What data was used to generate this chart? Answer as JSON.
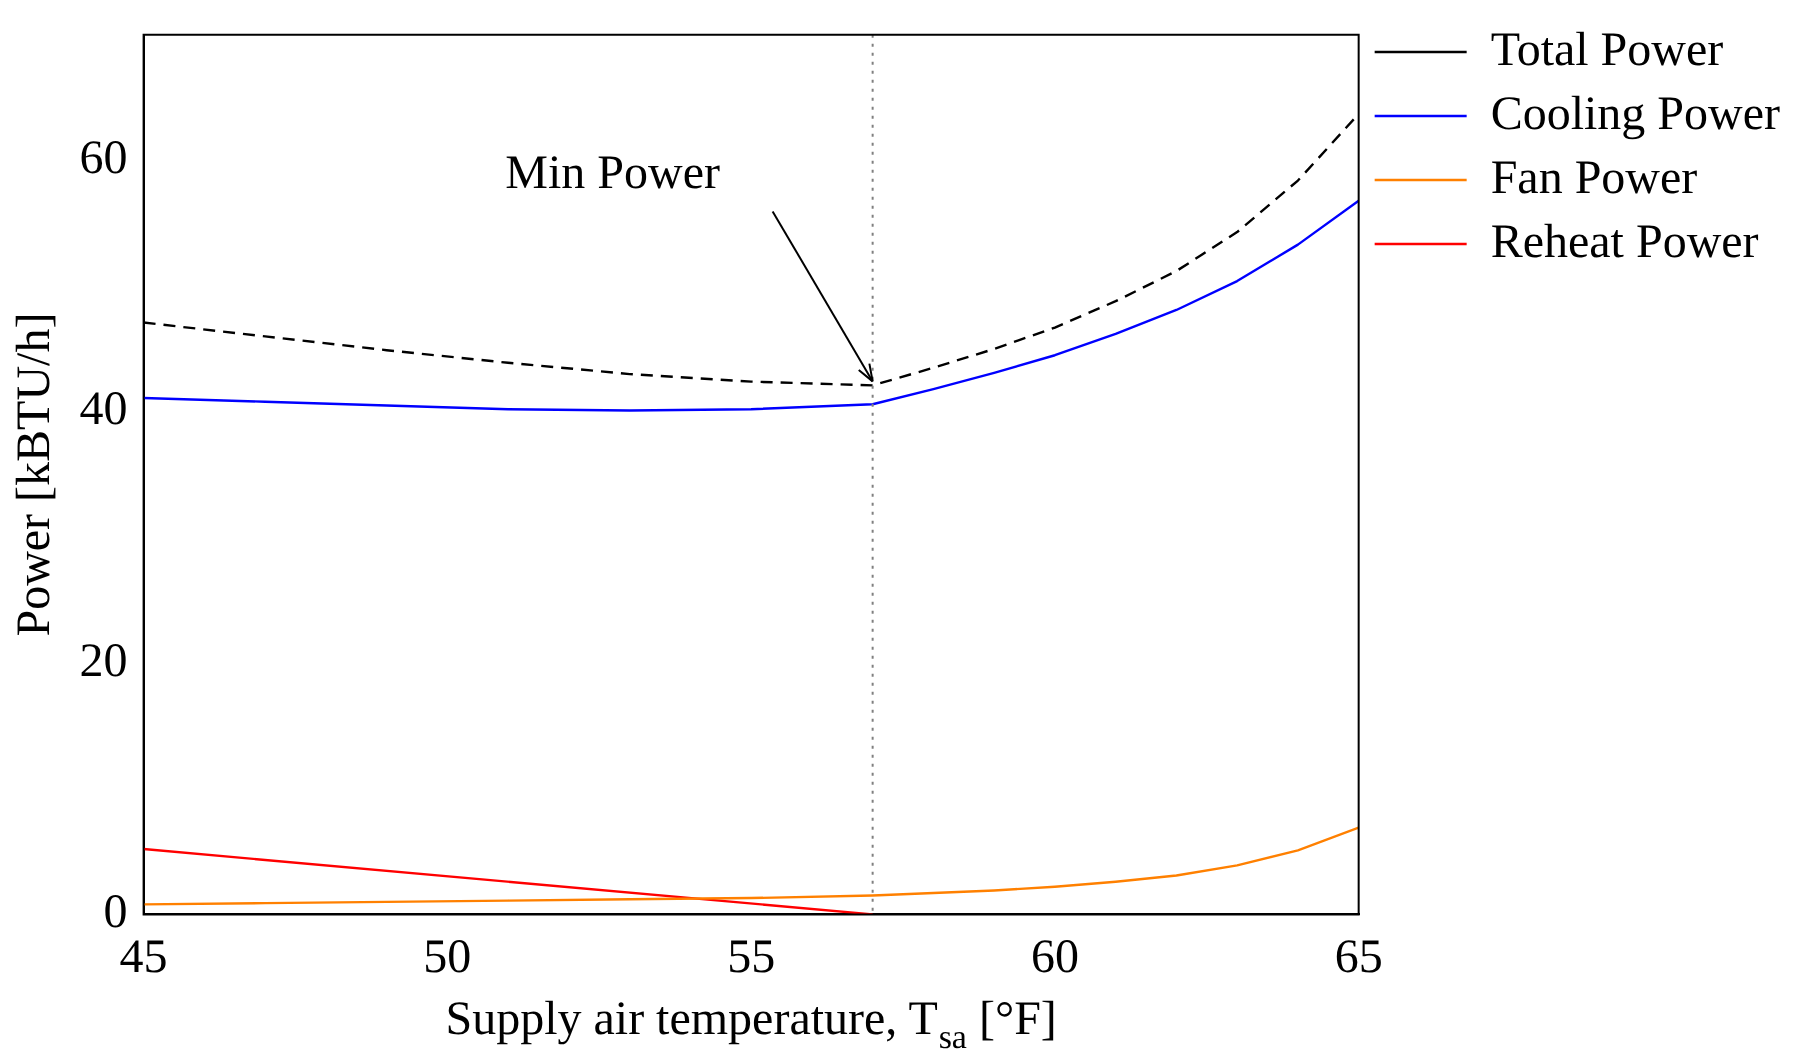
{
  "chart_data": {
    "type": "line",
    "xlabel": "Supply air temperature, T$_{sa}$ [°F]",
    "ylabel": "Power [kBTU/h]",
    "xlim": [
      45,
      65
    ],
    "xticks": [
      45,
      50,
      55,
      60,
      65
    ],
    "ylim": [
      0,
      70
    ],
    "yticks": [
      0,
      20,
      40,
      60
    ],
    "grid": false,
    "legend": "top right",
    "marker": "none",
    "series": [
      {
        "name": "Total Power",
        "color": "#000000",
        "line_style": "dashed",
        "x": [
          45,
          47,
          49,
          51,
          53,
          55,
          57,
          58,
          59,
          60,
          61,
          62,
          63,
          64,
          65
        ],
        "values": [
          47.1,
          46.0,
          44.9,
          43.9,
          43.0,
          42.4,
          42.1,
          43.5,
          45.0,
          46.7,
          48.8,
          51.2,
          54.3,
          58.4,
          63.7
        ]
      },
      {
        "name": "Cooling Power",
        "color": "#0000ff",
        "line_style": "solid",
        "x": [
          45,
          47,
          49,
          51,
          53,
          55,
          57,
          58,
          59,
          60,
          61,
          62,
          63,
          64,
          65
        ],
        "values": [
          41.1,
          40.8,
          40.5,
          40.2,
          40.1,
          40.2,
          40.6,
          41.8,
          43.1,
          44.5,
          46.2,
          48.1,
          50.4,
          53.3,
          56.8
        ]
      },
      {
        "name": "Fan Power",
        "color": "#ff8000",
        "line_style": "solid",
        "x": [
          45,
          47,
          49,
          51,
          53,
          55,
          57,
          59,
          60,
          61,
          62,
          63,
          64,
          65
        ],
        "values": [
          0.8,
          0.9,
          1.0,
          1.1,
          1.2,
          1.3,
          1.5,
          1.9,
          2.2,
          2.6,
          3.1,
          3.9,
          5.1,
          6.9
        ]
      },
      {
        "name": "Reheat Power",
        "color": "#ff0000",
        "line_style": "solid",
        "x": [
          45,
          57
        ],
        "values": [
          5.2,
          0
        ]
      }
    ],
    "ref_lines": [
      {
        "axis": "x",
        "value": 57,
        "line_style": "dotted",
        "color": "#808080"
      }
    ],
    "annotations": [
      {
        "text": "Min Power",
        "x": 57,
        "y": 42.1
      }
    ]
  }
}
